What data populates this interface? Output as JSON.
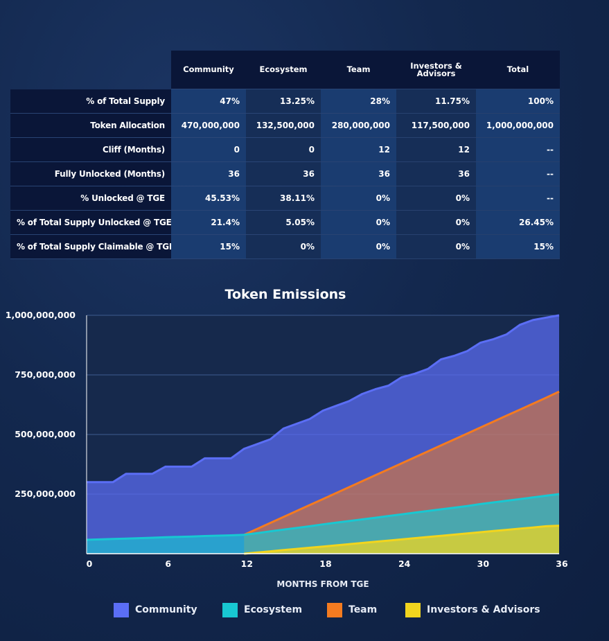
{
  "table": {
    "headers": [
      "Community",
      "Ecosystem",
      "Team",
      "Investors &\nAdvisors",
      "Total"
    ],
    "rows": [
      {
        "label": "% of Total Supply",
        "values": [
          "47%",
          "13.25%",
          "28%",
          "11.75%",
          "100%"
        ]
      },
      {
        "label": "Token Allocation",
        "values": [
          "470,000,000",
          "132,500,000",
          "280,000,000",
          "117,500,000",
          "1,000,000,000"
        ]
      },
      {
        "label": "Cliff (Months)",
        "values": [
          "0",
          "0",
          "12",
          "12",
          "--"
        ]
      },
      {
        "label": "Fully Unlocked (Months)",
        "values": [
          "36",
          "36",
          "36",
          "36",
          "--"
        ]
      },
      {
        "label": "% Unlocked @ TGE",
        "values": [
          "45.53%",
          "38.11%",
          "0%",
          "0%",
          "--"
        ]
      },
      {
        "label": "% of Total Supply Unlocked @ TGE",
        "values": [
          "21.4%",
          "5.05%",
          "0%",
          "0%",
          "26.45%"
        ]
      },
      {
        "label": "% of Total Supply Claimable @ TGE",
        "values": [
          "15%",
          "0%",
          "0%",
          "0%",
          "15%"
        ]
      }
    ]
  },
  "chart_data": {
    "type": "area",
    "title": "Token Emissions",
    "xlabel": "MONTHS FROM TGE",
    "ylabel": "",
    "xlim": [
      0,
      36
    ],
    "ylim": [
      0,
      1000000000
    ],
    "xticks": [
      0,
      6,
      12,
      18,
      24,
      30,
      36
    ],
    "yticks": [
      250000000,
      500000000,
      750000000,
      1000000000
    ],
    "ytick_labels": [
      "250,000,000",
      "500,000,000",
      "750,000,000",
      "1,000,000,000"
    ],
    "stacked": false,
    "grid": "horizontal",
    "legend_position": "bottom",
    "x": [
      0,
      1,
      2,
      3,
      4,
      5,
      6,
      7,
      8,
      9,
      10,
      11,
      12,
      13,
      14,
      15,
      16,
      17,
      18,
      19,
      20,
      21,
      22,
      23,
      24,
      25,
      26,
      27,
      28,
      29,
      30,
      31,
      32,
      33,
      34,
      35,
      36
    ],
    "series": [
      {
        "name": "Community",
        "color": "#5b6ef5",
        "values": [
          300000000,
          300000000,
          300000000,
          335000000,
          335000000,
          335000000,
          365000000,
          365000000,
          365000000,
          400000000,
          400000000,
          400000000,
          440000000,
          460000000,
          480000000,
          525000000,
          545000000,
          565000000,
          600000000,
          620000000,
          640000000,
          670000000,
          690000000,
          705000000,
          740000000,
          755000000,
          775000000,
          815000000,
          830000000,
          850000000,
          885000000,
          900000000,
          920000000,
          960000000,
          980000000,
          990000000,
          1000000000
        ]
      },
      {
        "name": "Ecosystem",
        "color": "#18c8d2",
        "values": [
          58000000,
          60000000,
          62000000,
          63500000,
          65000000,
          67000000,
          69000000,
          70500000,
          72000000,
          74000000,
          75500000,
          77000000,
          79000000,
          86000000,
          94000000,
          101000000,
          108000000,
          115000000,
          123000000,
          130000000,
          137000000,
          144000000,
          151000000,
          158000000,
          165000000,
          172000000,
          179000000,
          186000000,
          193000000,
          200000000,
          208000000,
          215000000,
          222000000,
          229000000,
          236000000,
          243000000,
          250000000
        ]
      },
      {
        "name": "Team",
        "color": "#f47b20",
        "values": [
          null,
          null,
          null,
          null,
          null,
          null,
          null,
          null,
          null,
          null,
          null,
          null,
          79000000,
          104000000,
          129000000,
          154000000,
          179000000,
          204000000,
          229000000,
          254000000,
          279000000,
          304000000,
          329000000,
          354000000,
          379000000,
          404000000,
          429000000,
          454000000,
          479000000,
          504000000,
          529000000,
          554000000,
          579000000,
          604000000,
          629000000,
          654000000,
          680000000
        ]
      },
      {
        "name": "Investors & Advisors",
        "color": "#f2d51e",
        "values": [
          null,
          null,
          null,
          null,
          null,
          null,
          null,
          null,
          null,
          null,
          null,
          null,
          0,
          5000000,
          10000000,
          15000000,
          20000000,
          25000000,
          30000000,
          35000000,
          40000000,
          45000000,
          50000000,
          55000000,
          60000000,
          65000000,
          70000000,
          75000000,
          80000000,
          85000000,
          90000000,
          95000000,
          100000000,
          105000000,
          110000000,
          115000000,
          117500000
        ]
      }
    ]
  }
}
